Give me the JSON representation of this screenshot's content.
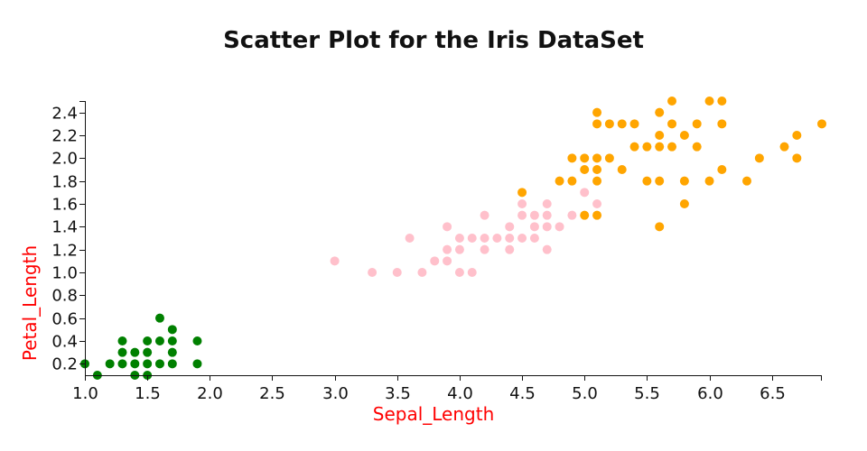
{
  "chart_data": {
    "type": "scatter",
    "title": "Scatter Plot for the Iris DataSet",
    "xlabel": "Sepal_Length",
    "ylabel": "Petal_Length",
    "label_color": "#ff0000",
    "xlim": [
      1.0,
      6.9
    ],
    "ylim": [
      0.1,
      2.5
    ],
    "x_ticks": [
      1.0,
      1.5,
      2.0,
      2.5,
      3.0,
      3.5,
      4.0,
      4.5,
      5.0,
      5.5,
      6.0,
      6.5
    ],
    "x_tick_labels": [
      "1.0",
      "1.5",
      "2.0",
      "2.5",
      "3.0",
      "3.5",
      "4.0",
      "4.5",
      "5.0",
      "5.5",
      "6.0",
      "6.5"
    ],
    "y_ticks": [
      0.2,
      0.4,
      0.6,
      0.8,
      1.0,
      1.2,
      1.4,
      1.6,
      1.8,
      2.0,
      2.2,
      2.4
    ],
    "y_tick_labels": [
      "0.2",
      "0.4",
      "0.6",
      "0.8",
      "1.0",
      "1.2",
      "1.4",
      "1.6",
      "1.8",
      "2.0",
      "2.2",
      "2.4"
    ],
    "grid": false,
    "series": [
      {
        "color": "#008000",
        "points": [
          [
            1.0,
            0.2
          ],
          [
            1.1,
            0.1
          ],
          [
            1.2,
            0.2
          ],
          [
            1.3,
            0.2
          ],
          [
            1.3,
            0.3
          ],
          [
            1.3,
            0.4
          ],
          [
            1.4,
            0.1
          ],
          [
            1.4,
            0.2
          ],
          [
            1.4,
            0.3
          ],
          [
            1.5,
            0.1
          ],
          [
            1.5,
            0.2
          ],
          [
            1.5,
            0.3
          ],
          [
            1.5,
            0.4
          ],
          [
            1.6,
            0.2
          ],
          [
            1.6,
            0.4
          ],
          [
            1.6,
            0.6
          ],
          [
            1.7,
            0.2
          ],
          [
            1.7,
            0.3
          ],
          [
            1.7,
            0.4
          ],
          [
            1.7,
            0.5
          ],
          [
            1.9,
            0.2
          ],
          [
            1.9,
            0.4
          ]
        ]
      },
      {
        "color": "#ffc0cb",
        "points": [
          [
            3.0,
            1.1
          ],
          [
            3.3,
            1.0
          ],
          [
            3.5,
            1.0
          ],
          [
            3.6,
            1.3
          ],
          [
            3.7,
            1.0
          ],
          [
            3.8,
            1.1
          ],
          [
            3.9,
            1.1
          ],
          [
            3.9,
            1.2
          ],
          [
            3.9,
            1.4
          ],
          [
            4.0,
            1.0
          ],
          [
            4.0,
            1.2
          ],
          [
            4.0,
            1.3
          ],
          [
            4.1,
            1.0
          ],
          [
            4.1,
            1.3
          ],
          [
            4.2,
            1.2
          ],
          [
            4.2,
            1.3
          ],
          [
            4.2,
            1.5
          ],
          [
            4.3,
            1.3
          ],
          [
            4.4,
            1.2
          ],
          [
            4.4,
            1.3
          ],
          [
            4.4,
            1.4
          ],
          [
            4.5,
            1.3
          ],
          [
            4.5,
            1.5
          ],
          [
            4.5,
            1.6
          ],
          [
            4.6,
            1.3
          ],
          [
            4.6,
            1.4
          ],
          [
            4.6,
            1.5
          ],
          [
            4.7,
            1.2
          ],
          [
            4.7,
            1.4
          ],
          [
            4.7,
            1.5
          ],
          [
            4.7,
            1.6
          ],
          [
            4.8,
            1.4
          ],
          [
            4.9,
            1.5
          ],
          [
            5.0,
            1.7
          ],
          [
            5.1,
            1.6
          ]
        ]
      },
      {
        "color": "#ffa500",
        "points": [
          [
            4.5,
            1.7
          ],
          [
            4.8,
            1.8
          ],
          [
            4.9,
            1.8
          ],
          [
            4.9,
            2.0
          ],
          [
            5.0,
            1.5
          ],
          [
            5.0,
            1.9
          ],
          [
            5.0,
            2.0
          ],
          [
            5.1,
            1.5
          ],
          [
            5.1,
            1.8
          ],
          [
            5.1,
            1.9
          ],
          [
            5.1,
            2.0
          ],
          [
            5.1,
            2.3
          ],
          [
            5.1,
            2.4
          ],
          [
            5.2,
            2.0
          ],
          [
            5.2,
            2.3
          ],
          [
            5.3,
            1.9
          ],
          [
            5.3,
            2.3
          ],
          [
            5.4,
            2.1
          ],
          [
            5.4,
            2.3
          ],
          [
            5.5,
            1.8
          ],
          [
            5.5,
            2.1
          ],
          [
            5.6,
            1.4
          ],
          [
            5.6,
            1.8
          ],
          [
            5.6,
            2.1
          ],
          [
            5.6,
            2.2
          ],
          [
            5.6,
            2.4
          ],
          [
            5.7,
            2.1
          ],
          [
            5.7,
            2.3
          ],
          [
            5.7,
            2.5
          ],
          [
            5.8,
            1.6
          ],
          [
            5.8,
            1.8
          ],
          [
            5.8,
            2.2
          ],
          [
            5.9,
            2.1
          ],
          [
            5.9,
            2.3
          ],
          [
            6.0,
            1.8
          ],
          [
            6.0,
            2.5
          ],
          [
            6.1,
            1.9
          ],
          [
            6.1,
            2.3
          ],
          [
            6.1,
            2.5
          ],
          [
            6.3,
            1.8
          ],
          [
            6.4,
            2.0
          ],
          [
            6.6,
            2.1
          ],
          [
            6.7,
            2.0
          ],
          [
            6.7,
            2.2
          ],
          [
            6.9,
            2.3
          ]
        ]
      }
    ]
  }
}
